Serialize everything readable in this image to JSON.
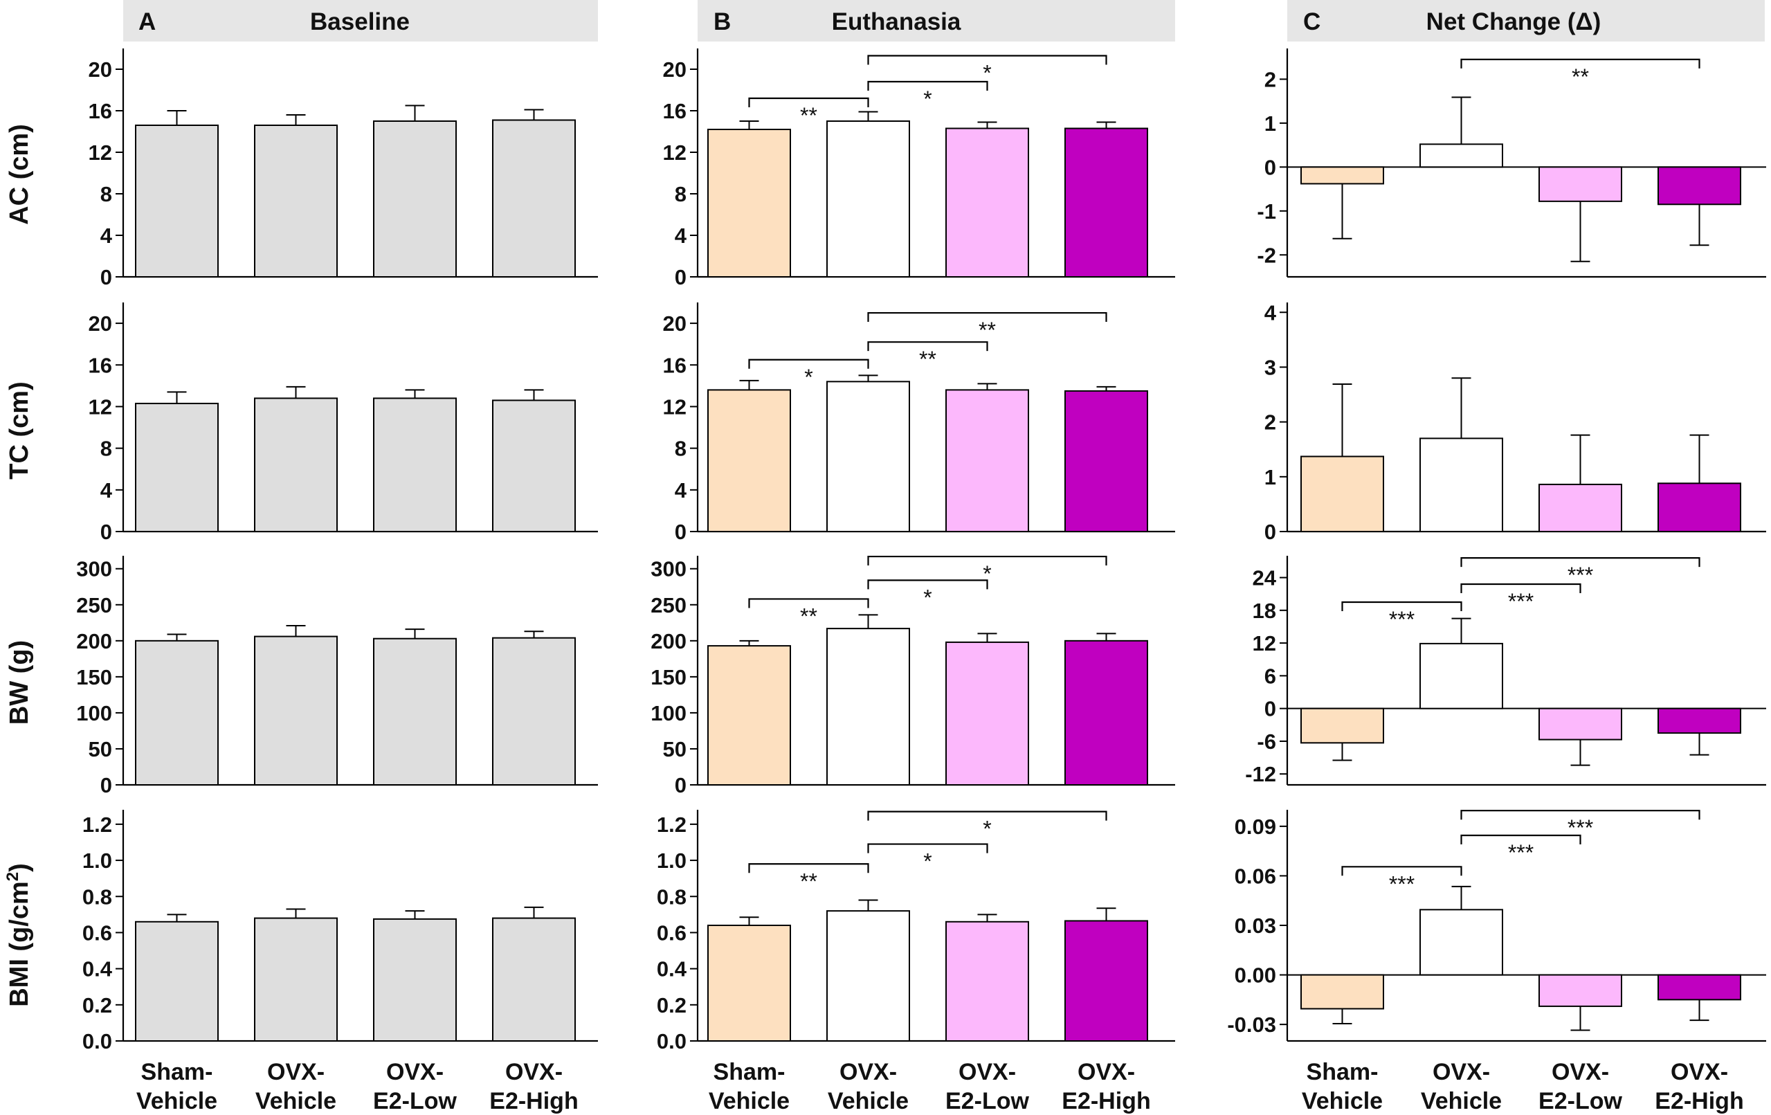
{
  "figure": {
    "categories": [
      {
        "line1": "Sham-",
        "line2": "Vehicle"
      },
      {
        "line1": "OVX-",
        "line2": "Vehicle"
      },
      {
        "line1": "OVX-",
        "line2": "E2-Low"
      },
      {
        "line1": "OVX-",
        "line2": "E2-High"
      }
    ],
    "colors": {
      "baseline": "#dedede",
      "sham_vehicle": "#fde0c0",
      "ovx_vehicle": "#ffffff",
      "ovx_e2_low": "#fcb8fc",
      "ovx_e2_high": "#c000c0",
      "header_bg": "#e6e6e6",
      "axis": "#000000"
    }
  },
  "panels": [
    {
      "letter": "A",
      "title": "Baseline"
    },
    {
      "letter": "B",
      "title": "Euthanasia"
    },
    {
      "letter": "C",
      "title": "Net Change (Δ)"
    }
  ],
  "row_labels": [
    {
      "text": "AC (cm)"
    },
    {
      "text": "TC (cm)"
    },
    {
      "text": "BW (g)"
    },
    {
      "text": "BMI (g/cm",
      "sup": "2",
      "tail": ")"
    }
  ],
  "chart_data": [
    {
      "type": "bar",
      "id": "A-AC",
      "panel": "Baseline",
      "ylabel": "AC (cm)",
      "categories": [
        "Sham-Vehicle",
        "OVX-Vehicle",
        "OVX-E2-Low",
        "OVX-E2-High"
      ],
      "values": [
        14.6,
        14.6,
        15.0,
        15.1
      ],
      "errors": [
        1.4,
        1.0,
        1.5,
        1.0
      ],
      "ylim": [
        0,
        22
      ],
      "ticks": [
        0,
        4,
        8,
        12,
        16,
        20
      ],
      "tick_labels": [
        "0",
        "4",
        "8",
        "12",
        "16",
        "20"
      ],
      "colors": [
        "#dedede",
        "#dedede",
        "#dedede",
        "#dedede"
      ],
      "brackets": []
    },
    {
      "type": "bar",
      "id": "A-TC",
      "panel": "Baseline",
      "ylabel": "TC (cm)",
      "categories": [
        "Sham-Vehicle",
        "OVX-Vehicle",
        "OVX-E2-Low",
        "OVX-E2-High"
      ],
      "values": [
        12.3,
        12.8,
        12.8,
        12.6
      ],
      "errors": [
        1.1,
        1.1,
        0.8,
        1.0
      ],
      "ylim": [
        0,
        22
      ],
      "ticks": [
        0,
        4,
        8,
        12,
        16,
        20
      ],
      "tick_labels": [
        "0",
        "4",
        "8",
        "12",
        "16",
        "20"
      ],
      "colors": [
        "#dedede",
        "#dedede",
        "#dedede",
        "#dedede"
      ],
      "brackets": []
    },
    {
      "type": "bar",
      "id": "A-BW",
      "panel": "Baseline",
      "ylabel": "BW (g)",
      "categories": [
        "Sham-Vehicle",
        "OVX-Vehicle",
        "OVX-E2-Low",
        "OVX-E2-High"
      ],
      "values": [
        200,
        206,
        203,
        204
      ],
      "errors": [
        9,
        15,
        13,
        9
      ],
      "ylim": [
        0,
        318
      ],
      "ticks": [
        0,
        50,
        100,
        150,
        200,
        250,
        300
      ],
      "tick_labels": [
        "0",
        "50",
        "100",
        "150",
        "200",
        "250",
        "300"
      ],
      "colors": [
        "#dedede",
        "#dedede",
        "#dedede",
        "#dedede"
      ],
      "brackets": []
    },
    {
      "type": "bar",
      "id": "A-BMI",
      "panel": "Baseline",
      "ylabel": "BMI (g/cm2)",
      "categories": [
        "Sham-Vehicle",
        "OVX-Vehicle",
        "OVX-E2-Low",
        "OVX-E2-High"
      ],
      "values": [
        0.66,
        0.68,
        0.675,
        0.68
      ],
      "errors": [
        0.04,
        0.05,
        0.045,
        0.06
      ],
      "ylim": [
        0,
        1.28
      ],
      "ticks": [
        0,
        0.2,
        0.4,
        0.6,
        0.8,
        1.0,
        1.2
      ],
      "tick_labels": [
        "0.0",
        "0.2",
        "0.4",
        "0.6",
        "0.8",
        "1.0",
        "1.2"
      ],
      "colors": [
        "#dedede",
        "#dedede",
        "#dedede",
        "#dedede"
      ],
      "brackets": []
    },
    {
      "type": "bar",
      "id": "B-AC",
      "panel": "Euthanasia",
      "ylabel": "AC (cm)",
      "categories": [
        "Sham-Vehicle",
        "OVX-Vehicle",
        "OVX-E2-Low",
        "OVX-E2-High"
      ],
      "values": [
        14.2,
        15.0,
        14.3,
        14.3
      ],
      "errors": [
        0.8,
        0.9,
        0.6,
        0.6
      ],
      "ylim": [
        0,
        22
      ],
      "ticks": [
        0,
        4,
        8,
        12,
        16,
        20
      ],
      "tick_labels": [
        "0",
        "4",
        "8",
        "12",
        "16",
        "20"
      ],
      "colors": [
        "#fde0c0",
        "#ffffff",
        "#fcb8fc",
        "#c000c0"
      ],
      "brackets": [
        {
          "from": 0,
          "to": 1,
          "y": 17.2,
          "label": "**"
        },
        {
          "from": 1,
          "to": 2,
          "y": 18.8,
          "label": "*"
        },
        {
          "from": 1,
          "to": 3,
          "y": 21.3,
          "label": "*"
        }
      ]
    },
    {
      "type": "bar",
      "id": "B-TC",
      "panel": "Euthanasia",
      "ylabel": "TC (cm)",
      "categories": [
        "Sham-Vehicle",
        "OVX-Vehicle",
        "OVX-E2-Low",
        "OVX-E2-High"
      ],
      "values": [
        13.6,
        14.4,
        13.6,
        13.5
      ],
      "errors": [
        0.9,
        0.6,
        0.6,
        0.4
      ],
      "ylim": [
        0,
        22
      ],
      "ticks": [
        0,
        4,
        8,
        12,
        16,
        20
      ],
      "tick_labels": [
        "0",
        "4",
        "8",
        "12",
        "16",
        "20"
      ],
      "colors": [
        "#fde0c0",
        "#ffffff",
        "#fcb8fc",
        "#c000c0"
      ],
      "brackets": [
        {
          "from": 0,
          "to": 1,
          "y": 16.5,
          "label": "*"
        },
        {
          "from": 1,
          "to": 2,
          "y": 18.2,
          "label": "**"
        },
        {
          "from": 1,
          "to": 3,
          "y": 21.0,
          "label": "**"
        }
      ]
    },
    {
      "type": "bar",
      "id": "B-BW",
      "panel": "Euthanasia",
      "ylabel": "BW (g)",
      "categories": [
        "Sham-Vehicle",
        "OVX-Vehicle",
        "OVX-E2-Low",
        "OVX-E2-High"
      ],
      "values": [
        193,
        217,
        198,
        200
      ],
      "errors": [
        7,
        19,
        12,
        10
      ],
      "ylim": [
        0,
        318
      ],
      "ticks": [
        0,
        50,
        100,
        150,
        200,
        250,
        300
      ],
      "tick_labels": [
        "0",
        "50",
        "100",
        "150",
        "200",
        "250",
        "300"
      ],
      "colors": [
        "#fde0c0",
        "#ffffff",
        "#fcb8fc",
        "#c000c0"
      ],
      "brackets": [
        {
          "from": 0,
          "to": 1,
          "y": 258,
          "label": "**"
        },
        {
          "from": 1,
          "to": 2,
          "y": 284,
          "label": "*"
        },
        {
          "from": 1,
          "to": 3,
          "y": 317,
          "label": "*"
        }
      ]
    },
    {
      "type": "bar",
      "id": "B-BMI",
      "panel": "Euthanasia",
      "ylabel": "BMI (g/cm2)",
      "categories": [
        "Sham-Vehicle",
        "OVX-Vehicle",
        "OVX-E2-Low",
        "OVX-E2-High"
      ],
      "values": [
        0.64,
        0.72,
        0.66,
        0.665
      ],
      "errors": [
        0.045,
        0.06,
        0.04,
        0.07
      ],
      "ylim": [
        0,
        1.28
      ],
      "ticks": [
        0,
        0.2,
        0.4,
        0.6,
        0.8,
        1.0,
        1.2
      ],
      "tick_labels": [
        "0.0",
        "0.2",
        "0.4",
        "0.6",
        "0.8",
        "1.0",
        "1.2"
      ],
      "colors": [
        "#fde0c0",
        "#ffffff",
        "#fcb8fc",
        "#c000c0"
      ],
      "brackets": [
        {
          "from": 0,
          "to": 1,
          "y": 0.98,
          "label": "**"
        },
        {
          "from": 1,
          "to": 2,
          "y": 1.09,
          "label": "*"
        },
        {
          "from": 1,
          "to": 3,
          "y": 1.27,
          "label": "*"
        }
      ]
    },
    {
      "type": "bar",
      "id": "C-AC",
      "panel": "Net Change (Δ)",
      "ylabel": "AC (cm)",
      "categories": [
        "Sham-Vehicle",
        "OVX-Vehicle",
        "OVX-E2-Low",
        "OVX-E2-High"
      ],
      "values": [
        -0.38,
        0.52,
        -0.78,
        -0.85
      ],
      "errors": [
        1.25,
        1.07,
        1.37,
        0.93
      ],
      "ylim": [
        -2.5,
        2.7
      ],
      "ticks": [
        -2,
        -1,
        0,
        1,
        2
      ],
      "tick_labels": [
        "-2",
        "-1",
        "0",
        "1",
        "2"
      ],
      "colors": [
        "#fde0c0",
        "#ffffff",
        "#fcb8fc",
        "#c000c0"
      ],
      "brackets": [
        {
          "from": 1,
          "to": 3,
          "y": 2.45,
          "label": "**"
        }
      ]
    },
    {
      "type": "bar",
      "id": "C-TC",
      "panel": "Net Change (Δ)",
      "ylabel": "TC (cm)",
      "categories": [
        "Sham-Vehicle",
        "OVX-Vehicle",
        "OVX-E2-Low",
        "OVX-E2-High"
      ],
      "values": [
        1.37,
        1.7,
        0.86,
        0.88
      ],
      "errors": [
        1.32,
        1.1,
        0.9,
        0.88
      ],
      "ylim": [
        0,
        4.18
      ],
      "ticks": [
        0,
        1,
        2,
        3,
        4
      ],
      "tick_labels": [
        "0",
        "1",
        "2",
        "3",
        "4"
      ],
      "colors": [
        "#fde0c0",
        "#ffffff",
        "#fcb8fc",
        "#c000c0"
      ],
      "brackets": []
    },
    {
      "type": "bar",
      "id": "C-BW",
      "panel": "Net Change (Δ)",
      "ylabel": "BW (g)",
      "categories": [
        "Sham-Vehicle",
        "OVX-Vehicle",
        "OVX-E2-Low",
        "OVX-E2-High"
      ],
      "values": [
        -6.3,
        11.9,
        -5.7,
        -4.5
      ],
      "errors": [
        3.2,
        4.6,
        4.7,
        4.0
      ],
      "ylim": [
        -14,
        28
      ],
      "ticks": [
        -12,
        -6,
        0,
        6,
        12,
        18,
        24
      ],
      "tick_labels": [
        "-12",
        "-6",
        "0",
        "6",
        "12",
        "18",
        "24"
      ],
      "colors": [
        "#fde0c0",
        "#ffffff",
        "#fcb8fc",
        "#c000c0"
      ],
      "brackets": [
        {
          "from": 0,
          "to": 1,
          "y": 19.5,
          "label": "***"
        },
        {
          "from": 1,
          "to": 2,
          "y": 22.8,
          "label": "***"
        },
        {
          "from": 1,
          "to": 3,
          "y": 27.6,
          "label": "***"
        }
      ]
    },
    {
      "type": "bar",
      "id": "C-BMI",
      "panel": "Net Change (Δ)",
      "ylabel": "BMI (g/cm2)",
      "categories": [
        "Sham-Vehicle",
        "OVX-Vehicle",
        "OVX-E2-Low",
        "OVX-E2-High"
      ],
      "values": [
        -0.0205,
        0.0395,
        -0.019,
        -0.015
      ],
      "errors": [
        0.009,
        0.014,
        0.0145,
        0.0125
      ],
      "ylim": [
        -0.04,
        0.1
      ],
      "ticks": [
        -0.03,
        0,
        0.03,
        0.06,
        0.09
      ],
      "tick_labels": [
        "-0.03",
        "0.00",
        "0.03",
        "0.06",
        "0.09"
      ],
      "colors": [
        "#fde0c0",
        "#ffffff",
        "#fcb8fc",
        "#c000c0"
      ],
      "brackets": [
        {
          "from": 0,
          "to": 1,
          "y": 0.0655,
          "label": "***"
        },
        {
          "from": 1,
          "to": 2,
          "y": 0.0845,
          "label": "***"
        },
        {
          "from": 1,
          "to": 3,
          "y": 0.0995,
          "label": "***"
        }
      ]
    }
  ]
}
